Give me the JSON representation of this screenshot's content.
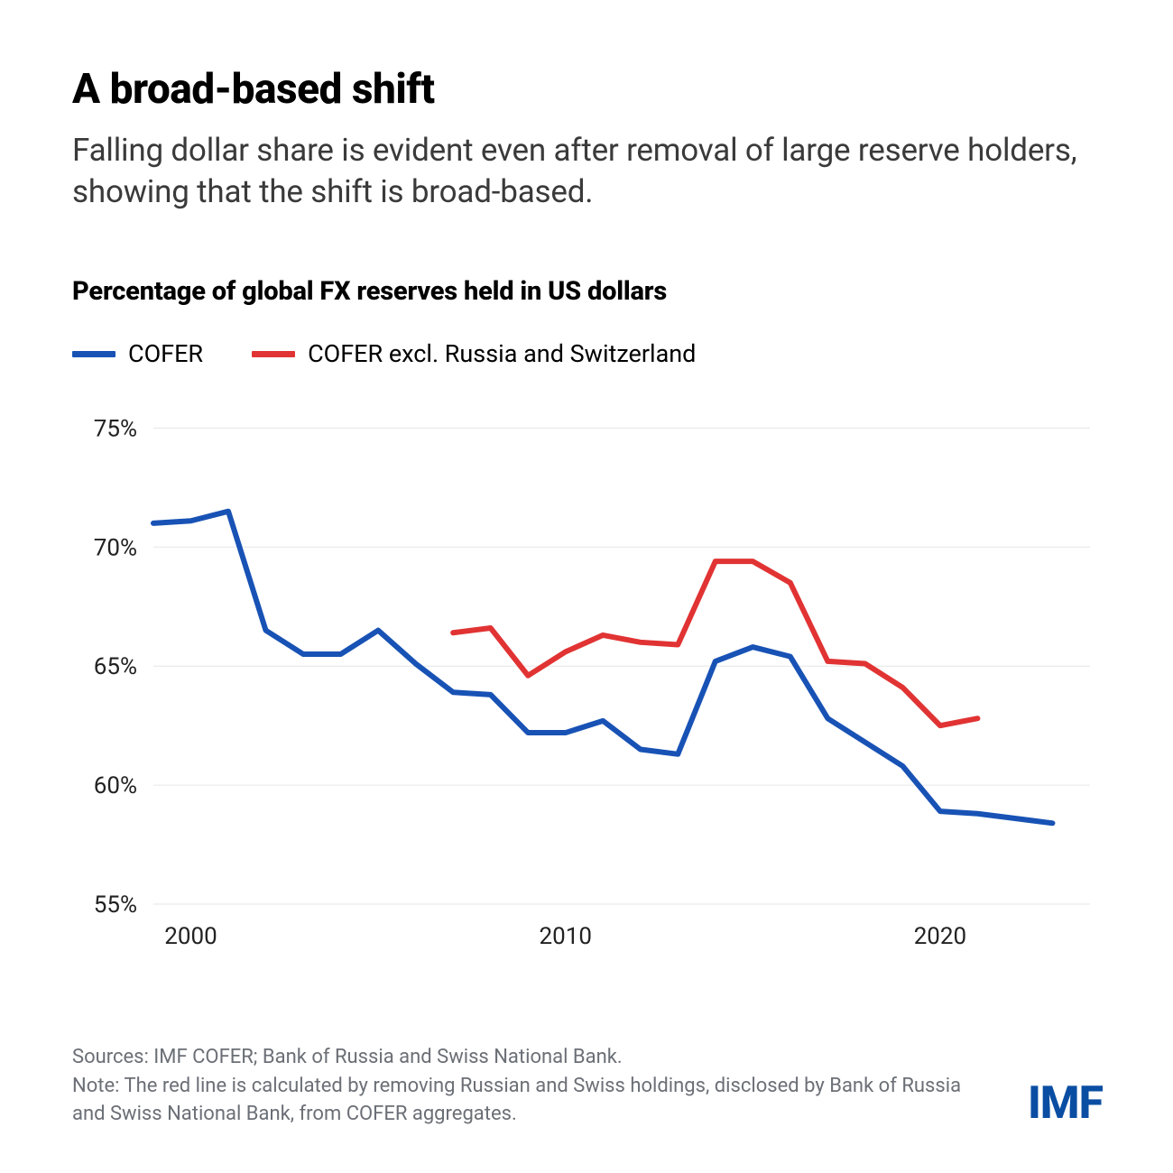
{
  "header": {
    "title": "A broad-based shift",
    "subtitle": "Falling dollar share is evident even after removal of large reserve holders, showing that the shift is broad-based."
  },
  "chart": {
    "type": "line",
    "label": "Percentage of global FX reserves held in US dollars",
    "background_color": "#ffffff",
    "grid_color": "#e6e6e6",
    "axis_text_color": "#222222",
    "axis_fontsize": 26,
    "x": {
      "min": 1999,
      "max": 2024,
      "ticks": [
        2000,
        2010,
        2020
      ]
    },
    "y": {
      "min": 55,
      "max": 76,
      "ticks": [
        55,
        60,
        65,
        70,
        75
      ],
      "tick_labels": [
        "55%",
        "60%",
        "65%",
        "70%",
        "75%"
      ]
    },
    "line_width": 6,
    "series": [
      {
        "id": "cofer",
        "label": "COFER",
        "color": "#1852b5",
        "points": [
          [
            1999,
            71.0
          ],
          [
            2000,
            71.1
          ],
          [
            2001,
            71.5
          ],
          [
            2002,
            66.5
          ],
          [
            2003,
            65.5
          ],
          [
            2004,
            65.5
          ],
          [
            2005,
            66.5
          ],
          [
            2006,
            65.1
          ],
          [
            2007,
            63.9
          ],
          [
            2008,
            63.8
          ],
          [
            2009,
            62.2
          ],
          [
            2010,
            62.2
          ],
          [
            2011,
            62.7
          ],
          [
            2012,
            61.5
          ],
          [
            2013,
            61.3
          ],
          [
            2014,
            65.2
          ],
          [
            2015,
            65.8
          ],
          [
            2016,
            65.4
          ],
          [
            2017,
            62.8
          ],
          [
            2018,
            61.8
          ],
          [
            2019,
            60.8
          ],
          [
            2020,
            58.9
          ],
          [
            2021,
            58.8
          ],
          [
            2022,
            58.6
          ],
          [
            2023,
            58.4
          ]
        ]
      },
      {
        "id": "cofer_excl",
        "label": "COFER excl. Russia and Switzerland",
        "color": "#e13333",
        "points": [
          [
            2007,
            66.4
          ],
          [
            2008,
            66.6
          ],
          [
            2009,
            64.6
          ],
          [
            2010,
            65.6
          ],
          [
            2011,
            66.3
          ],
          [
            2012,
            66.0
          ],
          [
            2013,
            65.9
          ],
          [
            2014,
            69.4
          ],
          [
            2015,
            69.4
          ],
          [
            2016,
            68.5
          ],
          [
            2017,
            65.2
          ],
          [
            2018,
            65.1
          ],
          [
            2019,
            64.1
          ],
          [
            2020,
            62.5
          ],
          [
            2021,
            62.8
          ]
        ]
      }
    ]
  },
  "footer": {
    "sources": "Sources: IMF COFER; Bank of Russia and Swiss National Bank.",
    "note": "Note: The red line is calculated by removing Russian and Swiss holdings, disclosed by Bank of Russia and Swiss National Bank, from COFER aggregates.",
    "logo_text": "IMF",
    "logo_color": "#0a4ea3"
  }
}
